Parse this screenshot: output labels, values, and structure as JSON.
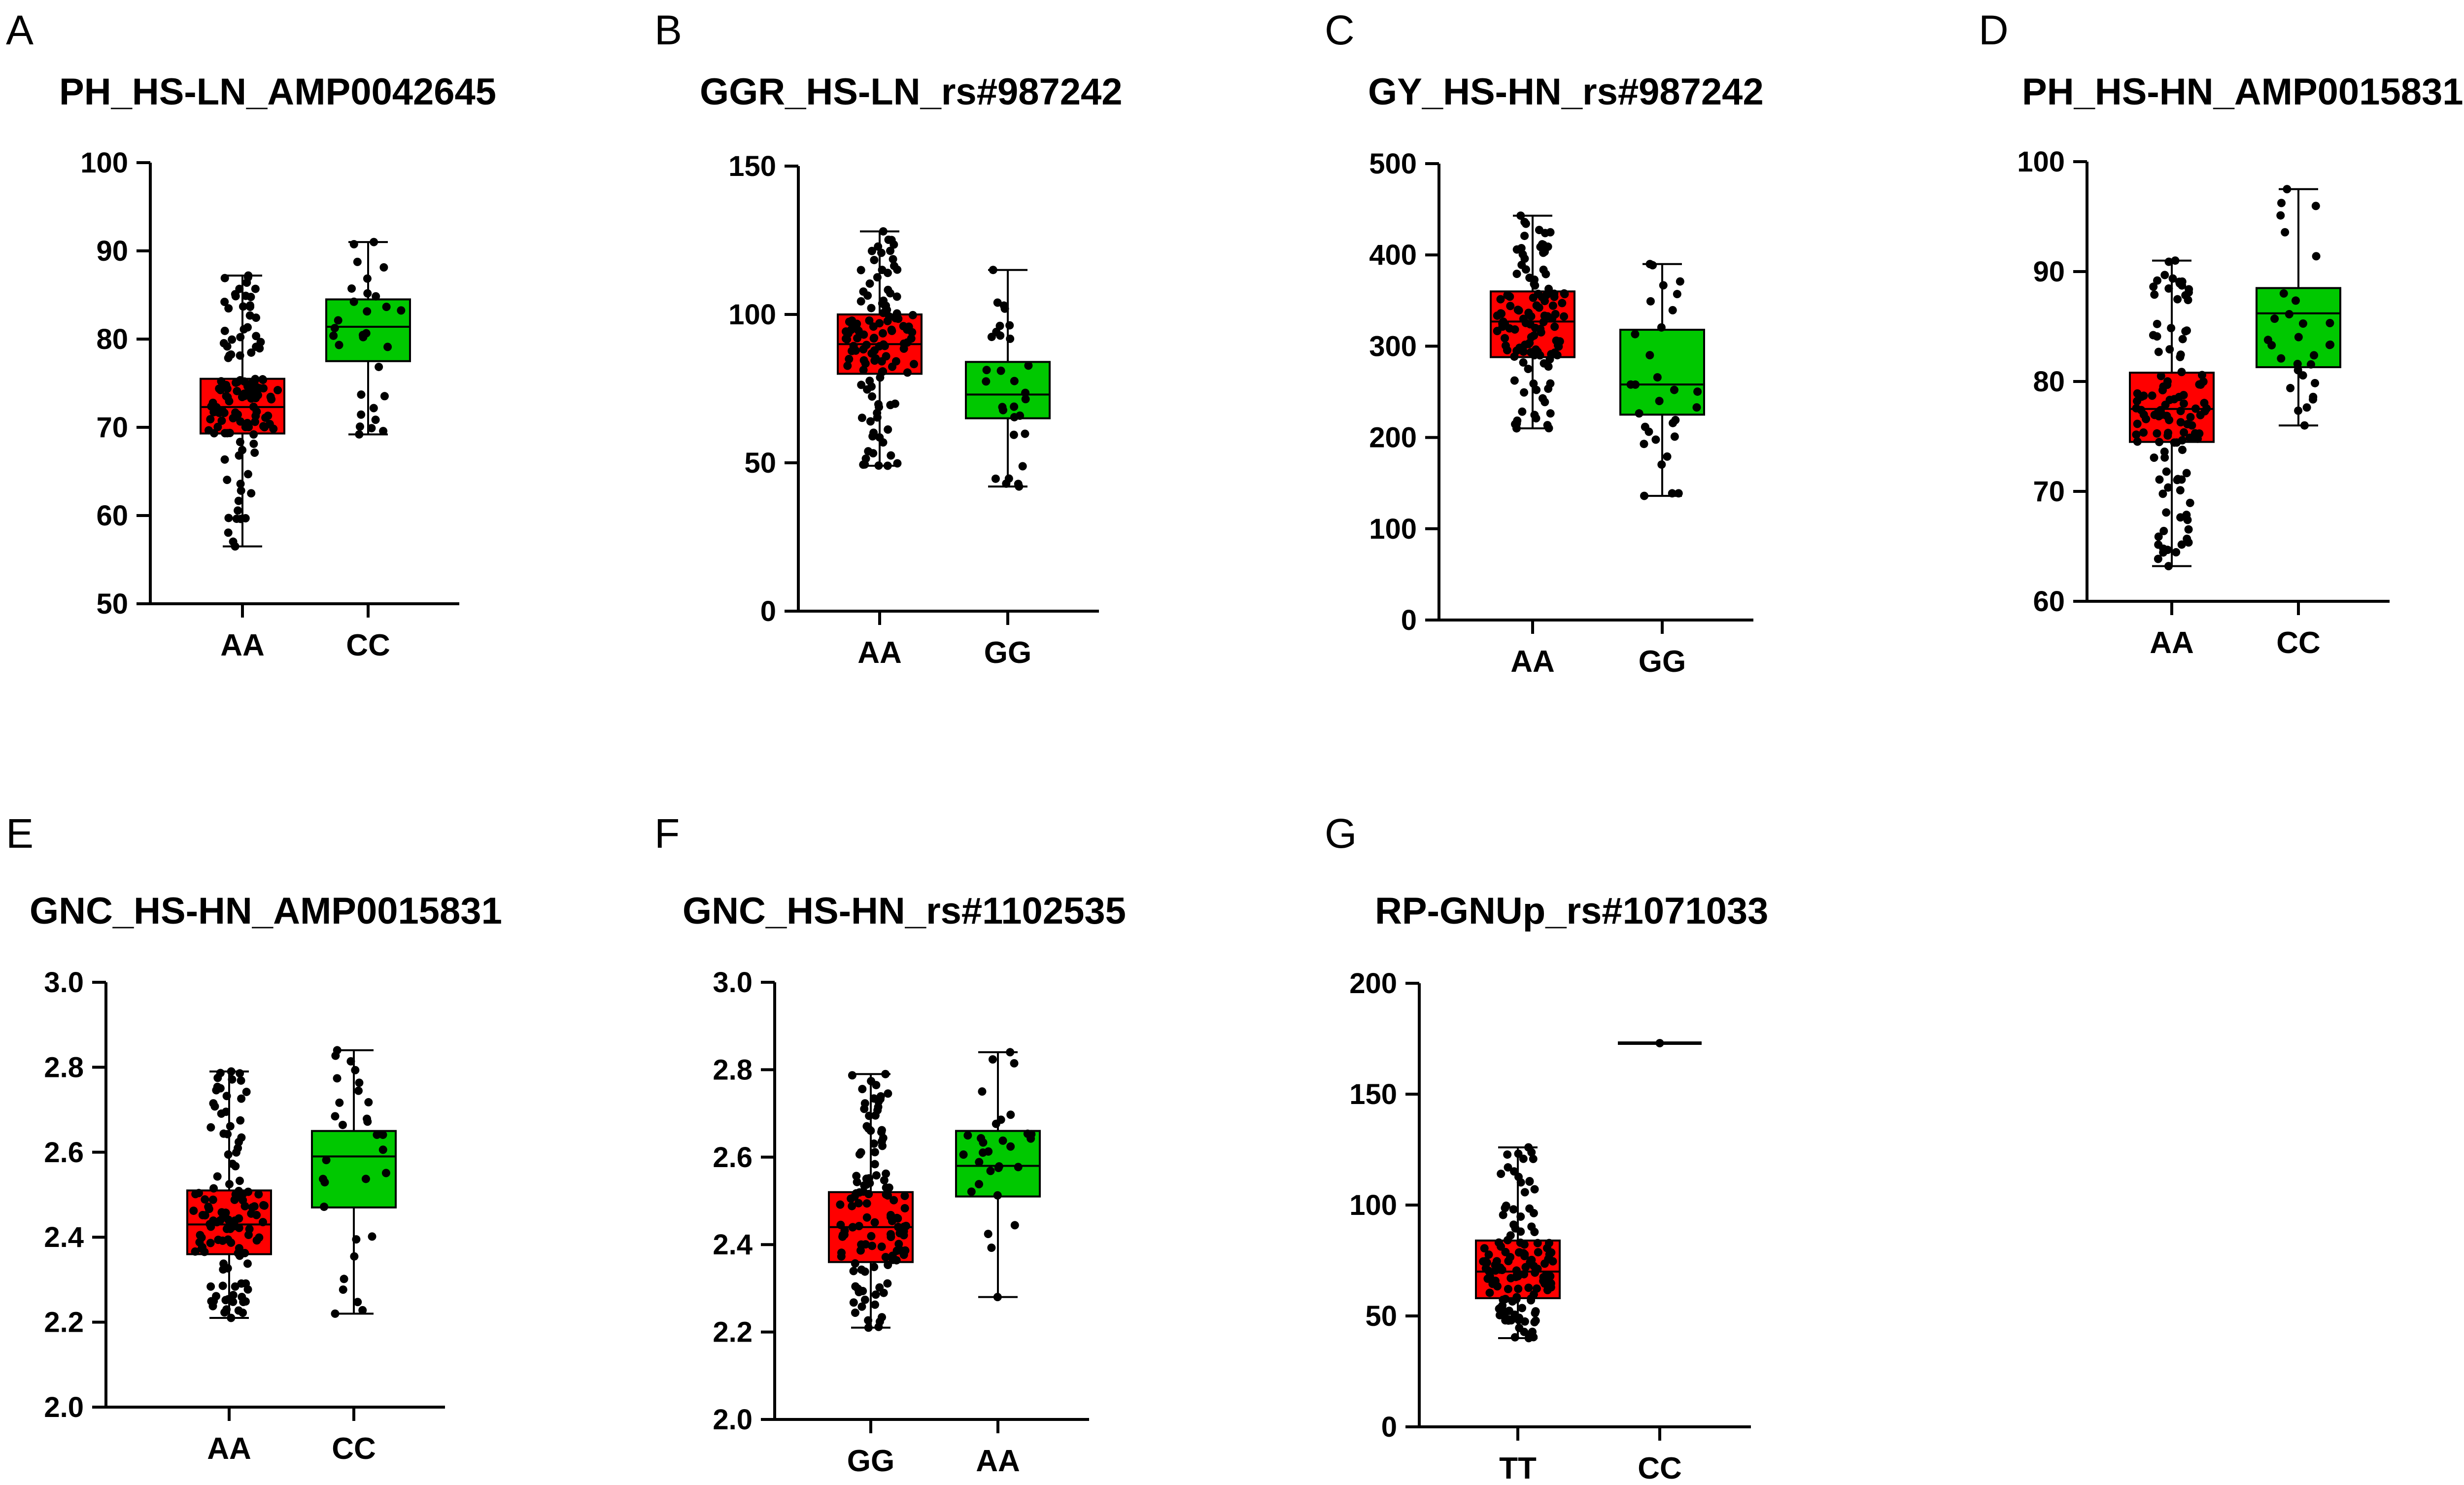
{
  "colors": {
    "group1": "#ff0000",
    "group2": "#00c800",
    "points": "#000000",
    "axis": "#000000"
  },
  "chart_data": [
    {
      "panel": "A",
      "type": "box",
      "title": "PH_HS-LN_AMP0042645",
      "ylim": [
        50,
        100
      ],
      "yticks": [
        50,
        60,
        70,
        80,
        90,
        100
      ],
      "categories": [
        "AA",
        "CC"
      ],
      "boxes": [
        {
          "category": "AA",
          "min": 56.5,
          "q1": 69.3,
          "median": 72.3,
          "q3": 75.5,
          "max": 87.2,
          "n": 120
        },
        {
          "category": "CC",
          "min": 69.2,
          "q1": 77.5,
          "median": 81.4,
          "q3": 84.5,
          "max": 91.0,
          "n": 30
        }
      ]
    },
    {
      "panel": "B",
      "type": "box",
      "title": "GGR_HS-LN_rs#987242",
      "ylim": [
        0,
        150
      ],
      "yticks": [
        0,
        50,
        100,
        150
      ],
      "categories": [
        "AA",
        "GG"
      ],
      "boxes": [
        {
          "category": "AA",
          "min": 49,
          "q1": 80,
          "median": 90,
          "q3": 100,
          "max": 128,
          "n": 120
        },
        {
          "category": "GG",
          "min": 42,
          "q1": 65,
          "median": 73,
          "q3": 84,
          "max": 115,
          "n": 30
        }
      ]
    },
    {
      "panel": "C",
      "type": "box",
      "title": "GY_HS-HN_rs#987242",
      "ylim": [
        0,
        500
      ],
      "yticks": [
        0,
        100,
        200,
        300,
        400,
        500
      ],
      "categories": [
        "AA",
        "GG"
      ],
      "boxes": [
        {
          "category": "AA",
          "min": 210,
          "q1": 288,
          "median": 327,
          "q3": 360,
          "max": 443,
          "n": 120
        },
        {
          "category": "GG",
          "min": 136,
          "q1": 225,
          "median": 258,
          "q3": 318,
          "max": 390,
          "n": 30
        }
      ]
    },
    {
      "panel": "D",
      "type": "box",
      "title": "PH_HS-HN_AMP0015831",
      "ylim": [
        60,
        100
      ],
      "yticks": [
        60,
        70,
        80,
        90,
        100
      ],
      "categories": [
        "AA",
        "CC"
      ],
      "boxes": [
        {
          "category": "AA",
          "min": 63.2,
          "q1": 74.5,
          "median": 77.5,
          "q3": 80.8,
          "max": 91.0,
          "n": 120
        },
        {
          "category": "CC",
          "min": 76.0,
          "q1": 81.3,
          "median": 86.2,
          "q3": 88.5,
          "max": 97.5,
          "n": 30
        }
      ]
    },
    {
      "panel": "E",
      "type": "box",
      "title": "GNC_HS-HN_AMP0015831",
      "ylim": [
        2.0,
        3.0
      ],
      "yticks": [
        "2.0",
        "2.2",
        "2.4",
        "2.6",
        "2.8",
        "3.0"
      ],
      "categories": [
        "AA",
        "CC"
      ],
      "boxes": [
        {
          "category": "AA",
          "min": 2.21,
          "q1": 2.36,
          "median": 2.43,
          "q3": 2.51,
          "max": 2.79,
          "n": 120
        },
        {
          "category": "CC",
          "min": 2.22,
          "q1": 2.47,
          "median": 2.59,
          "q3": 2.65,
          "max": 2.84,
          "n": 30
        }
      ]
    },
    {
      "panel": "F",
      "type": "box",
      "title": "GNC_HS-HN_rs#1102535",
      "ylim": [
        2.0,
        3.0
      ],
      "yticks": [
        "2.0",
        "2.2",
        "2.4",
        "2.6",
        "2.8",
        "3.0"
      ],
      "categories": [
        "GG",
        "AA"
      ],
      "boxes": [
        {
          "category": "GG",
          "min": 2.21,
          "q1": 2.36,
          "median": 2.44,
          "q3": 2.52,
          "max": 2.79,
          "n": 120
        },
        {
          "category": "AA",
          "min": 2.28,
          "q1": 2.51,
          "median": 2.58,
          "q3": 2.66,
          "max": 2.84,
          "n": 30
        }
      ]
    },
    {
      "panel": "G",
      "type": "box",
      "title": "RP-GNUp_rs#1071033",
      "ylim": [
        0,
        200
      ],
      "yticks": [
        0,
        50,
        100,
        150,
        200
      ],
      "categories": [
        "TT",
        "CC"
      ],
      "boxes": [
        {
          "category": "TT",
          "min": 40,
          "q1": 58,
          "median": 70,
          "q3": 84,
          "max": 126,
          "n": 130
        },
        {
          "category": "CC",
          "min": 173,
          "q1": 173,
          "median": 173,
          "q3": 173,
          "max": 173,
          "n": 1
        }
      ]
    }
  ]
}
